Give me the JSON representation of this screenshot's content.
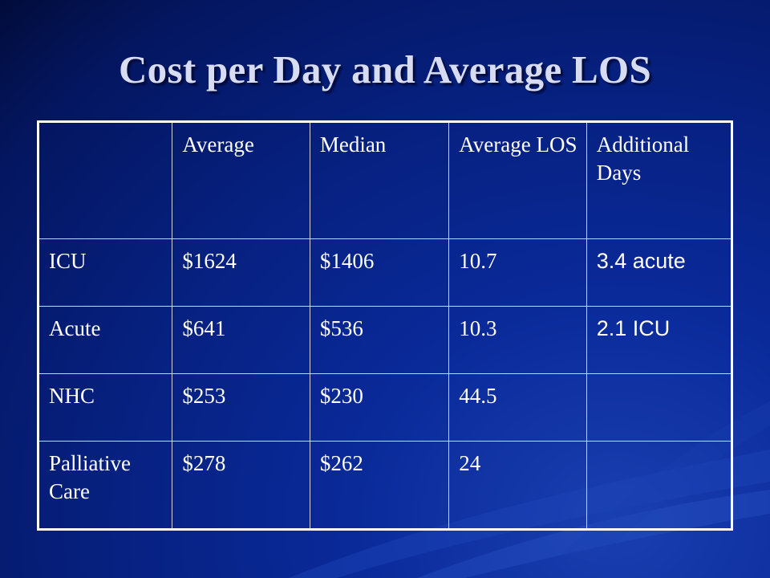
{
  "slide": {
    "title": "Cost per Day and Average LOS"
  },
  "table": {
    "headers": [
      "",
      "Average",
      "Median",
      "Average LOS",
      "Additional Days"
    ],
    "rows": [
      [
        "ICU",
        "$1624",
        "$1406",
        "10.7",
        "3.4 acute"
      ],
      [
        "Acute",
        "$641",
        "$536",
        "10.3",
        "2.1 ICU"
      ],
      [
        "NHC",
        "$253",
        "$230",
        "44.5",
        ""
      ],
      [
        "Palliative Care",
        "$278",
        "$262",
        "24",
        ""
      ]
    ]
  },
  "colors": {
    "background": "#0a2a9a",
    "title": "#d8dcf2",
    "table_text": "#ffffff",
    "table_border": "#ffffff"
  }
}
